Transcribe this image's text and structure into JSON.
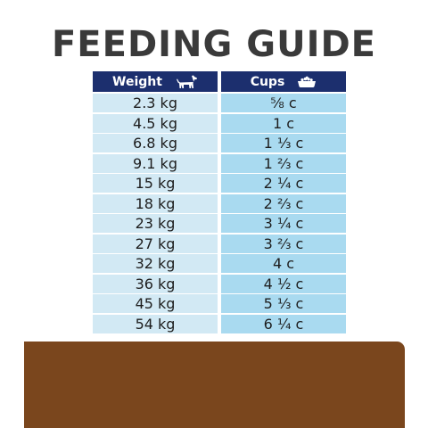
{
  "title": "FEEDING GUIDE",
  "header": {
    "weight_label": "Weight",
    "cups_label": "Cups",
    "weight_icon": "dog-icon",
    "cups_icon": "food-bowl-icon"
  },
  "rows": [
    {
      "weight": "2.3 kg",
      "cups": "⅝ c"
    },
    {
      "weight": "4.5 kg",
      "cups": "1 c"
    },
    {
      "weight": "6.8 kg",
      "cups": "1 ⅓ c"
    },
    {
      "weight": "9.1 kg",
      "cups": "1 ⅔ c"
    },
    {
      "weight": "15 kg",
      "cups": "2 ¼ c"
    },
    {
      "weight": "18 kg",
      "cups": "2 ⅔ c"
    },
    {
      "weight": "23 kg",
      "cups": "3 ¼ c"
    },
    {
      "weight": "27 kg",
      "cups": "3 ⅔ c"
    },
    {
      "weight": "32 kg",
      "cups": "4 c"
    },
    {
      "weight": "36 kg",
      "cups": "4 ½ c"
    },
    {
      "weight": "45 kg",
      "cups": "5 ⅓ c"
    },
    {
      "weight": "54 kg",
      "cups": "6 ¼ c"
    }
  ],
  "colors": {
    "header_bg": "#1c2f6e",
    "weight_col_bg": "#d2e9f4",
    "cups_col_bg": "#a9daf0",
    "band": "#7a461d",
    "title": "#3a3a3a"
  }
}
